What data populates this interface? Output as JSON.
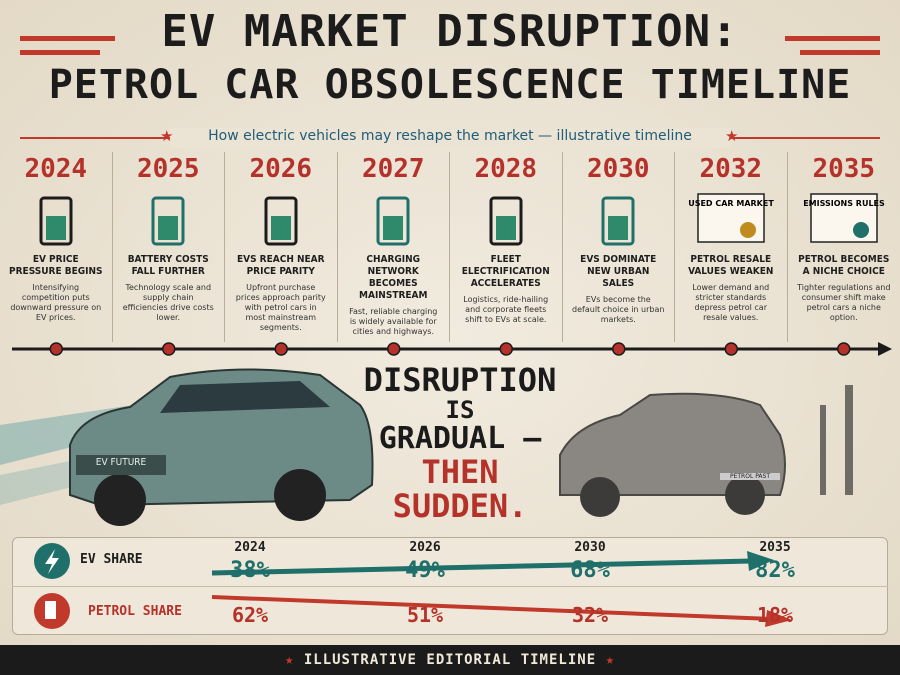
{
  "header": {
    "title_line1": "EV MARKET DISRUPTION:",
    "title_line2": "PETROL CAR OBSOLESCENCE TIMELINE",
    "subtitle": "How electric vehicles may reshape the market — illustrative timeline"
  },
  "timeline": [
    {
      "year": "2024",
      "heading": "EV PRICE PRESSURE BEGINS",
      "text": "Intensifying competition puts downward pressure on EV prices."
    },
    {
      "year": "2025",
      "heading": "BATTERY COSTS FALL FURTHER",
      "text": "Technology scale and supply chain efficiencies drive costs lower."
    },
    {
      "year": "2026",
      "heading": "EVS REACH NEAR PRICE PARITY",
      "text": "Upfront purchase prices approach parity with petrol cars in most mainstream segments."
    },
    {
      "year": "2027",
      "heading": "CHARGING NETWORK BECOMES MAINSTREAM",
      "text": "Fast, reliable charging is widely available for cities and highways."
    },
    {
      "year": "2028",
      "heading": "FLEET ELECTRIFICATION ACCELERATES",
      "text": "Logistics, ride-hailing and corporate fleets shift to EVs at scale."
    },
    {
      "year": "2030",
      "heading": "EVS DOMINATE NEW URBAN SALES",
      "text": "EVs become the default choice in urban markets."
    },
    {
      "year": "2032",
      "heading": "PETROL RESALE VALUES WEAKEN",
      "text": "Lower demand and stricter standards depress petrol car resale values.",
      "icon_label": "USED CAR MARKET"
    },
    {
      "year": "2035",
      "heading": "PETROL BECOMES A NICHE CHOICE",
      "text": "Tighter regulations and consumer shift make petrol cars a niche option.",
      "icon_label": "EMISSIONS RULES"
    }
  ],
  "slogan": [
    "DISRUPTION",
    "IS",
    "GRADUAL —",
    "THEN",
    "SUDDEN."
  ],
  "badges": {
    "ev": "EV FUTURE",
    "petrol": "PETROL PAST"
  },
  "shares": {
    "years": [
      "2024",
      "2026",
      "2030",
      "2035"
    ],
    "ev_label": "EV SHARE",
    "ev": [
      "38%",
      "49%",
      "68%",
      "82%"
    ],
    "petrol_label": "PETROL SHARE",
    "petrol": [
      "62%",
      "51%",
      "32%",
      "18%"
    ]
  },
  "footer": "ILLUSTRATIVE EDITORIAL TIMELINE"
}
